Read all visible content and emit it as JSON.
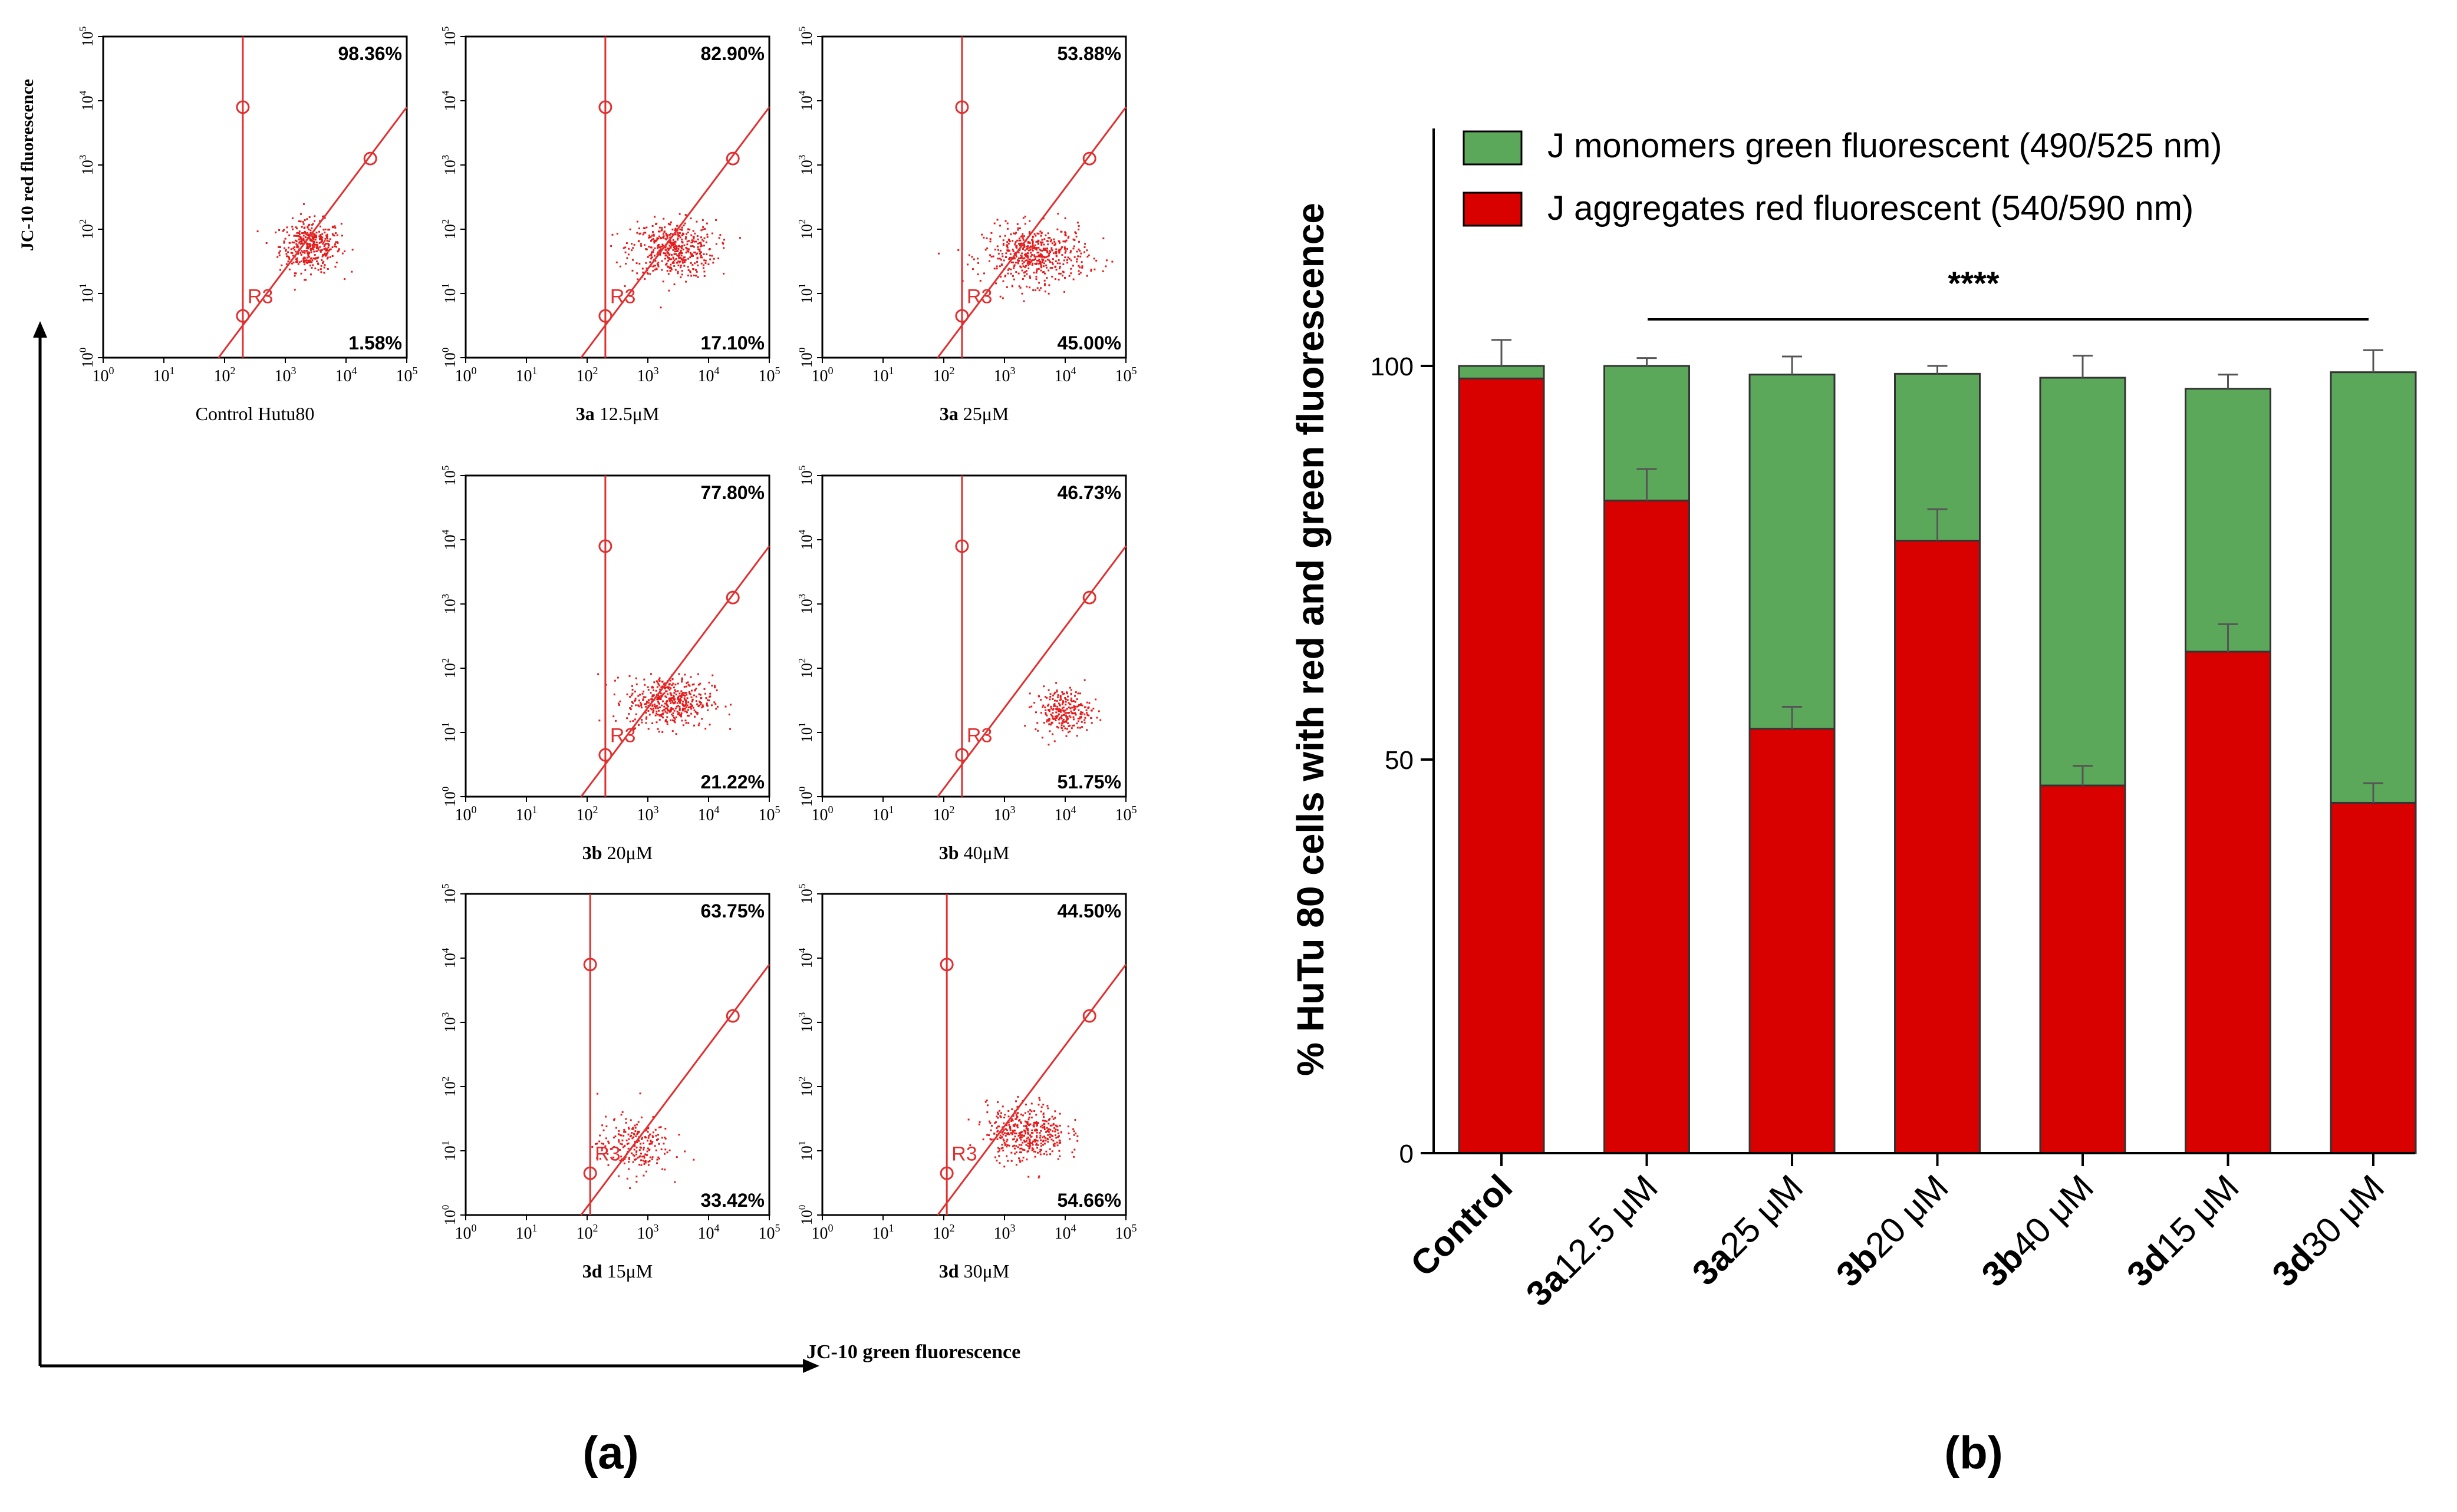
{
  "panel_a": {
    "letter": "(a)",
    "y_axis_label": "JC-10 red fluorescence",
    "x_axis_label": "JC-10 green fluorescence",
    "gate_label": "R3",
    "tick_labels": [
      "10",
      "10",
      "10",
      "10",
      "10",
      "10"
    ],
    "tick_exponents": [
      "0",
      "1",
      "2",
      "3",
      "4",
      "5"
    ],
    "plots": [
      {
        "bold": "",
        "label": "Control Hutu80",
        "upper": "98.36%",
        "lower": "1.58%"
      },
      {
        "bold": "3a",
        "label": "12.5μM",
        "upper": "82.90%",
        "lower": "17.10%"
      },
      {
        "bold": "3a",
        "label": "25μM",
        "upper": "53.88%",
        "lower": "45.00%"
      },
      {
        "bold": "3b",
        "label": "20μM",
        "upper": "77.80%",
        "lower": "21.22%"
      },
      {
        "bold": "3b",
        "label": "40μM",
        "upper": "46.73%",
        "lower": "51.75%"
      },
      {
        "bold": "3d",
        "label": "15μM",
        "upper": "63.75%",
        "lower": "33.42%"
      },
      {
        "bold": "3d",
        "label": "30μM",
        "upper": "44.50%",
        "lower": "54.66%"
      }
    ]
  },
  "chart_data": {
    "type": "bar",
    "stacked": true,
    "panel_letter": "(b)",
    "ylabel": "% HuTu 80 cells with red and green fluorescence",
    "xlabel": "",
    "ylim": [
      0,
      130
    ],
    "yticks": [
      0,
      50,
      100
    ],
    "ytick_labels": [
      "0",
      "50",
      "100"
    ],
    "categories": [
      {
        "bold": "Control",
        "rest": ""
      },
      {
        "bold": "3a",
        "rest": "12.5 μM"
      },
      {
        "bold": "3a",
        "rest": "25 μM"
      },
      {
        "bold": "3b",
        "rest": "20 μM"
      },
      {
        "bold": "3b",
        "rest": "40 μM"
      },
      {
        "bold": "3d",
        "rest": "15 μM"
      },
      {
        "bold": "3d",
        "rest": "30 μM"
      }
    ],
    "series": [
      {
        "name": "J aggregates red fluorescent (540/590 nm)",
        "color": "#d90000",
        "values": [
          98.4,
          82.9,
          53.9,
          77.8,
          46.7,
          63.7,
          44.5
        ],
        "errors": [
          0,
          4,
          2.8,
          4,
          2.5,
          3.5,
          2.5
        ]
      },
      {
        "name": "J monomers green fluorescent (490/525 nm)",
        "color": "#5ba85b",
        "values": [
          1.6,
          17.1,
          45.0,
          21.2,
          51.8,
          33.4,
          54.7
        ],
        "errors": [
          3.3,
          1,
          2.3,
          1,
          2.8,
          1.8,
          2.8
        ]
      }
    ],
    "legend_order": [
      1,
      0
    ],
    "legend_position": "top",
    "significance": "****"
  }
}
